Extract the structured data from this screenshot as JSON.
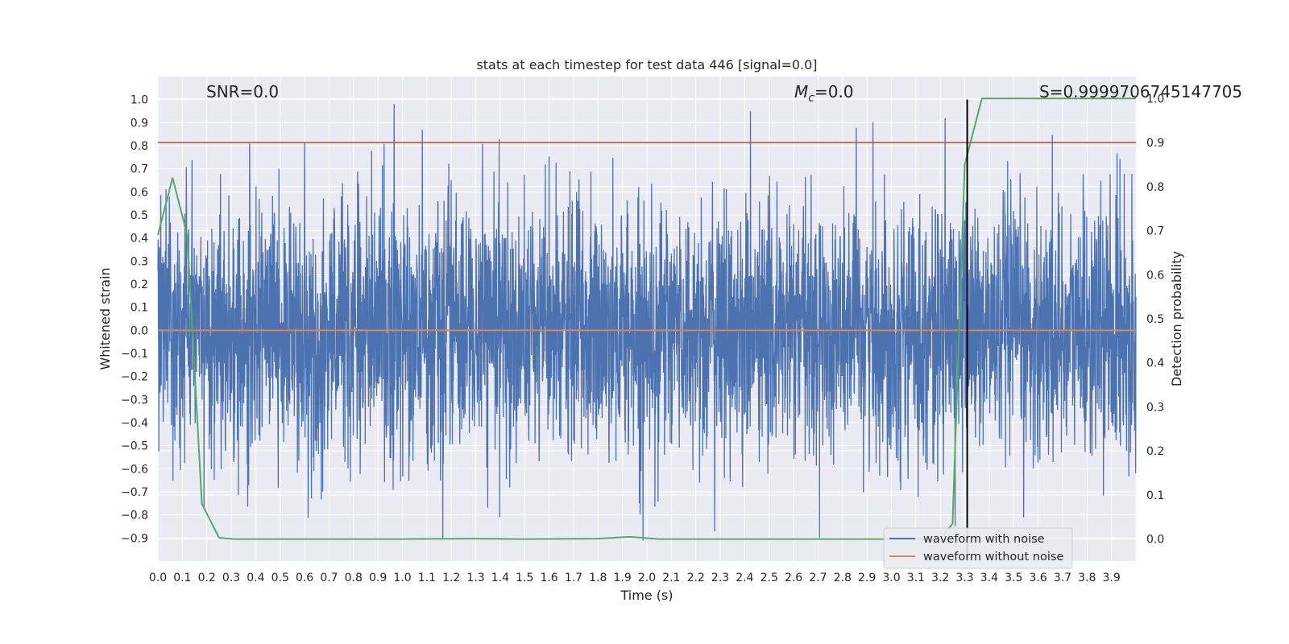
{
  "chart_data": {
    "type": "line",
    "title": "stats at each timestep for test data 446 [signal=0.0]",
    "xlabel": "Time (s)",
    "ylabel": "Whitened strain",
    "y2label": "Detection probability",
    "xlim": [
      0.0,
      4.0
    ],
    "ylim": [
      -1.0,
      1.1
    ],
    "y2lim": [
      -0.05,
      1.05
    ],
    "x_ticks": [
      "0.0",
      "0.1",
      "0.2",
      "0.3",
      "0.4",
      "0.5",
      "0.6",
      "0.7",
      "0.8",
      "0.9",
      "1.0",
      "1.1",
      "1.2",
      "1.3",
      "1.4",
      "1.5",
      "1.6",
      "1.7",
      "1.8",
      "1.9",
      "2.0",
      "2.1",
      "2.2",
      "2.3",
      "2.4",
      "2.5",
      "2.6",
      "2.7",
      "2.8",
      "2.9",
      "3.0",
      "3.1",
      "3.2",
      "3.3",
      "3.4",
      "3.5",
      "3.6",
      "3.7",
      "3.8",
      "3.9"
    ],
    "y_ticks": [
      "1.0",
      "0.9",
      "0.8",
      "0.7",
      "0.6",
      "0.5",
      "0.4",
      "0.3",
      "0.2",
      "0.1",
      "0.0",
      "−0.1",
      "−0.2",
      "−0.3",
      "−0.4",
      "−0.5",
      "−0.6",
      "−0.7",
      "−0.8",
      "−0.9"
    ],
    "y_tick_values": [
      1.0,
      0.9,
      0.8,
      0.7,
      0.6,
      0.5,
      0.4,
      0.3,
      0.2,
      0.1,
      0.0,
      -0.1,
      -0.2,
      -0.3,
      -0.4,
      -0.5,
      -0.6,
      -0.7,
      -0.8,
      -0.9
    ],
    "y2_ticks": [
      "1.0",
      "0.9",
      "0.8",
      "0.7",
      "0.6",
      "0.5",
      "0.4",
      "0.3",
      "0.2",
      "0.1",
      "0.0"
    ],
    "y2_tick_values": [
      1.0,
      0.9,
      0.8,
      0.7,
      0.6,
      0.5,
      0.4,
      0.3,
      0.2,
      0.1,
      0.0
    ],
    "grid": true,
    "series": [
      {
        "name": "waveform with noise",
        "color": "#4c72b0",
        "axis": "left",
        "description_noise": {
          "n_points": 4096,
          "std": 0.27,
          "x_range": [
            0.0,
            4.0
          ]
        }
      },
      {
        "name": "waveform without noise",
        "color": "#dd8452",
        "axis": "left",
        "x": [
          0.0,
          4.0
        ],
        "y": [
          0.0,
          0.0
        ]
      },
      {
        "name": "",
        "color": "#55a868",
        "axis": "right",
        "x": [
          0.0,
          0.06,
          0.12,
          0.18,
          0.25,
          0.31,
          0.5,
          1.0,
          1.3,
          1.5,
          1.8,
          1.93,
          2.05,
          2.5,
          3.0,
          3.1,
          3.2,
          3.25,
          3.3,
          3.37,
          3.5,
          3.7,
          4.0
        ],
        "y": [
          0.69,
          0.82,
          0.69,
          0.08,
          0.003,
          0.0,
          0.0,
          0.0,
          0.001,
          0.0,
          0.001,
          0.005,
          0.0,
          0.0,
          0.0,
          0.0,
          0.0,
          0.035,
          0.85,
          1.0,
          1.0,
          1.0,
          1.0
        ]
      }
    ],
    "threshold_line": {
      "axis": "right",
      "value": 0.9,
      "color": "#c44e52"
    },
    "vertical_line": {
      "x": 3.31,
      "color": "#000000"
    },
    "annotations": {
      "snr": "SNR=0.0",
      "mc_symbol": "M",
      "mc_sub": "c",
      "mc_value": "=0.0",
      "s_value": "S=0.9999706745147705"
    },
    "legend_position": "lower-right"
  }
}
